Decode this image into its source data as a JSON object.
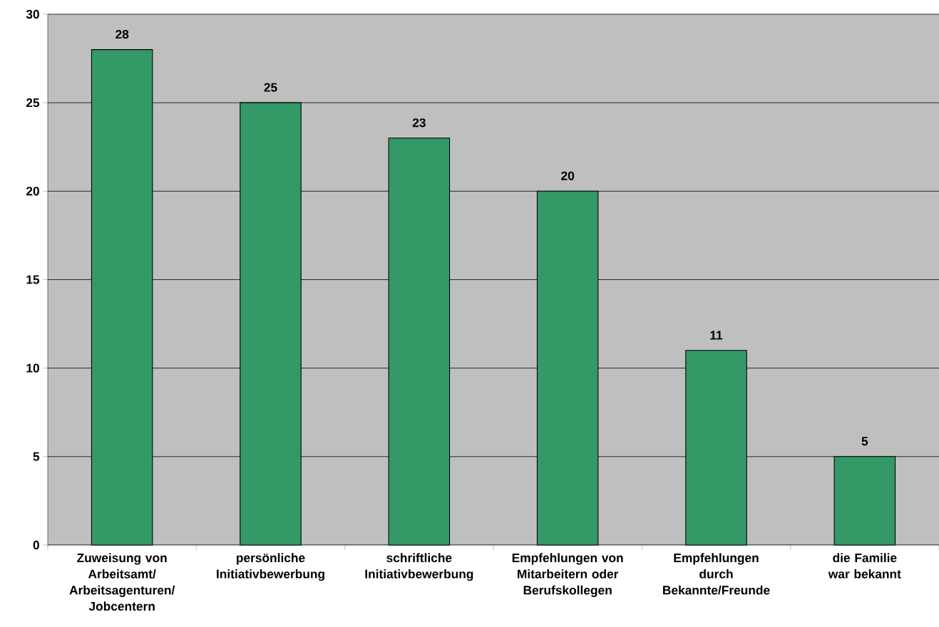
{
  "chart_data": {
    "type": "bar",
    "categories": [
      "Zuweisung von Arbeitsamt/ Arbeitsagenturen/ Jobcentern",
      "persönliche Initiativbewerbung",
      "schriftliche Initiativbewerbung",
      "Empfehlungen von Mitarbeitern oder Berufskollegen",
      "Empfehlungen durch Bekannte/Freunde",
      "die Familie war bekannt"
    ],
    "values": [
      28,
      25,
      23,
      20,
      11,
      5
    ],
    "color": "#339966",
    "ylim": [
      0,
      30
    ],
    "yticks": [
      0,
      5,
      10,
      15,
      20,
      25,
      30
    ],
    "grid": "y",
    "data_labels": true
  }
}
